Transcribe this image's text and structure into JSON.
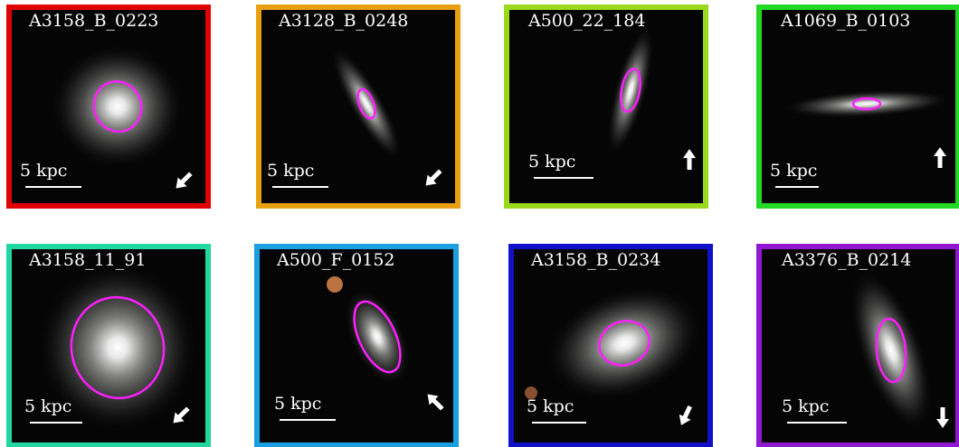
{
  "panels": [
    {
      "label": "A3158_B_0223",
      "scale_label": "5 kpc"
    },
    {
      "label": "A3128_B_0248",
      "scale_label": "5 kpc"
    },
    {
      "label": "A500_22_184",
      "scale_label": "5 kpc"
    },
    {
      "label": "A1069_B_0103",
      "scale_label": "5 kpc"
    },
    {
      "label": "A3158_11_91",
      "scale_label": "5 kpc"
    },
    {
      "label": "A500_F_0152",
      "scale_label": "5 kpc"
    },
    {
      "label": "A3158_B_0234",
      "scale_label": "5 kpc"
    },
    {
      "label": "A3376_B_0214",
      "scale_label": "5 kpc"
    }
  ]
}
